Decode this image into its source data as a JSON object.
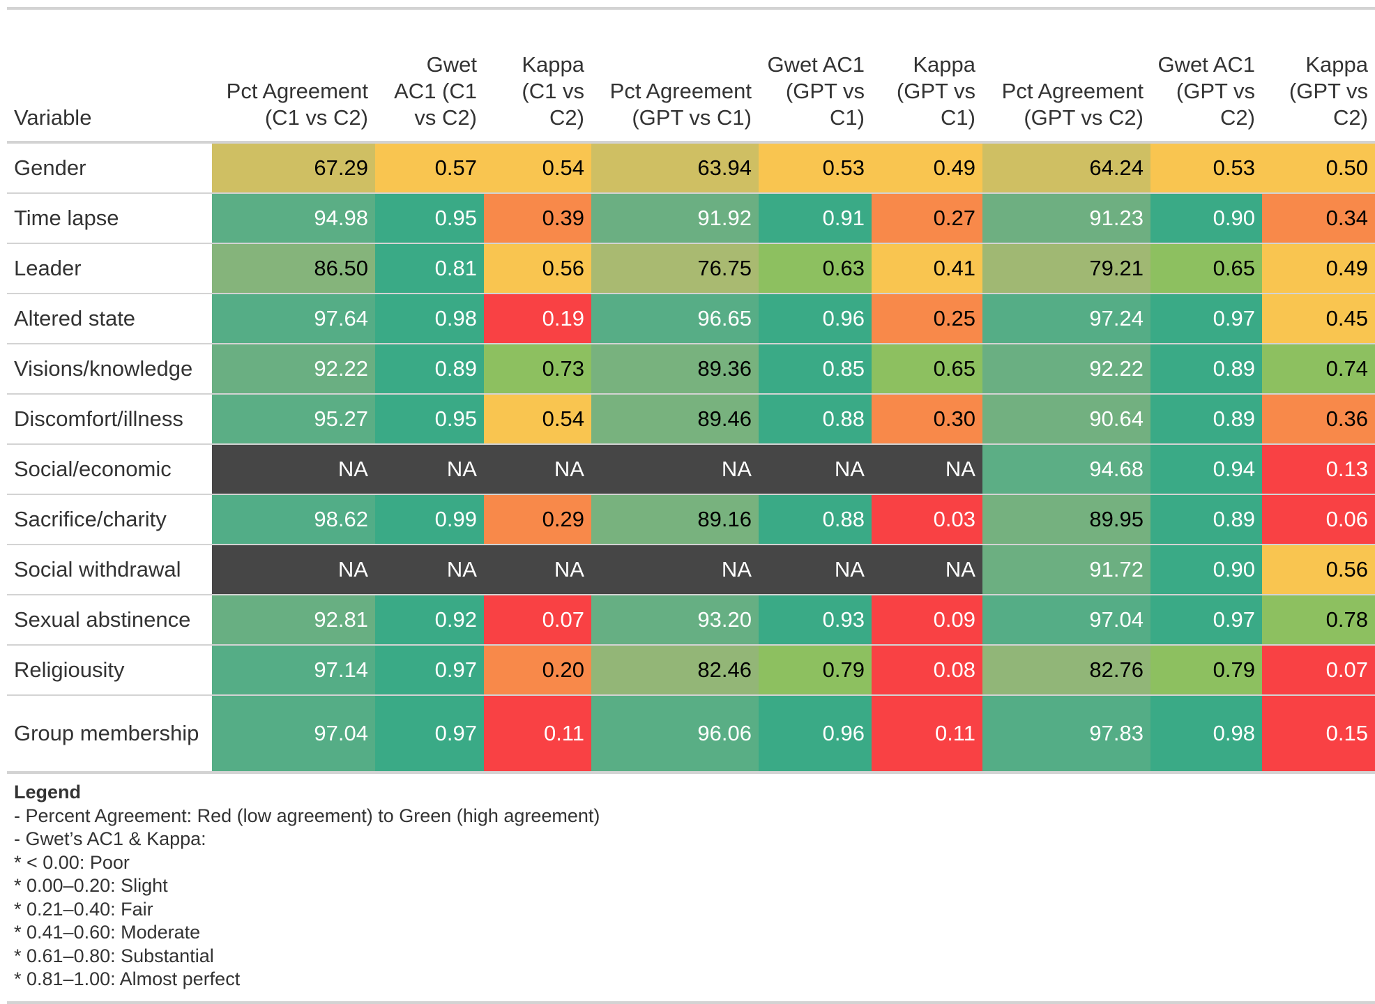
{
  "table": {
    "headers": [
      "Variable",
      "Pct Agreement (C1 vs C2)",
      "Gwet AC1 (C1 vs C2)",
      "Kappa (C1 vs C2)",
      "Pct Agreement (GPT vs C1)",
      "Gwet AC1 (GPT vs C1)",
      "Kappa (GPT vs C1)",
      "Pct Agreement (GPT vs C2)",
      "Gwet AC1 (GPT vs C2)",
      "Kappa (GPT vs C2)"
    ],
    "rows": [
      {
        "variable": "Gender",
        "values": [
          "67.29",
          "0.57",
          "0.54",
          "63.94",
          "0.53",
          "0.49",
          "64.24",
          "0.53",
          "0.50"
        ],
        "bg": [
          "#CFBF63",
          "#F9C550",
          "#F9C550",
          "#CFBF63",
          "#F9C550",
          "#F9C550",
          "#CFBF63",
          "#F9C550",
          "#F9C550"
        ],
        "fg": [
          "#000000",
          "#000000",
          "#000000",
          "#000000",
          "#000000",
          "#000000",
          "#000000",
          "#000000",
          "#000000"
        ]
      },
      {
        "variable": "Time lapse",
        "values": [
          "94.98",
          "0.95",
          "0.39",
          "91.92",
          "0.91",
          "0.27",
          "91.23",
          "0.90",
          "0.34"
        ],
        "bg": [
          "#5BAE85",
          "#3AAA86",
          "#F8894A",
          "#6BAF82",
          "#3AAA86",
          "#F8894A",
          "#6EAF81",
          "#3AAA86",
          "#F8894A"
        ],
        "fg": [
          "#FFFFFF",
          "#FFFFFF",
          "#000000",
          "#FFFFFF",
          "#FFFFFF",
          "#000000",
          "#FFFFFF",
          "#FFFFFF",
          "#000000"
        ]
      },
      {
        "variable": "Leader",
        "values": [
          "86.50",
          "0.81",
          "0.56",
          "76.75",
          "0.63",
          "0.41",
          "79.21",
          "0.65",
          "0.49"
        ],
        "bg": [
          "#85B47B",
          "#3AAA86",
          "#F9C550",
          "#A9BA71",
          "#8DC060",
          "#F9C550",
          "#A0B873",
          "#8DC060",
          "#F9C550"
        ],
        "fg": [
          "#000000",
          "#FFFFFF",
          "#000000",
          "#000000",
          "#000000",
          "#000000",
          "#000000",
          "#000000",
          "#000000"
        ]
      },
      {
        "variable": "Altered state",
        "values": [
          "97.64",
          "0.98",
          "0.19",
          "96.65",
          "0.96",
          "0.25",
          "97.24",
          "0.97",
          "0.45"
        ],
        "bg": [
          "#55AD86",
          "#3AAA86",
          "#F94144",
          "#57AD86",
          "#3AAA86",
          "#F8894A",
          "#55AD86",
          "#3AAA86",
          "#F9C550"
        ],
        "fg": [
          "#FFFFFF",
          "#FFFFFF",
          "#FFFFFF",
          "#FFFFFF",
          "#FFFFFF",
          "#000000",
          "#FFFFFF",
          "#FFFFFF",
          "#000000"
        ]
      },
      {
        "variable": "Visions/knowledge",
        "values": [
          "92.22",
          "0.89",
          "0.73",
          "89.36",
          "0.85",
          "0.65",
          "92.22",
          "0.89",
          "0.74"
        ],
        "bg": [
          "#6AAF82",
          "#3AAA86",
          "#8DC060",
          "#78B27E",
          "#3AAA86",
          "#8DC060",
          "#6AAF82",
          "#3AAA86",
          "#8DC060"
        ],
        "fg": [
          "#FFFFFF",
          "#FFFFFF",
          "#000000",
          "#000000",
          "#FFFFFF",
          "#000000",
          "#FFFFFF",
          "#FFFFFF",
          "#000000"
        ]
      },
      {
        "variable": "Discomfort/illness",
        "values": [
          "95.27",
          "0.95",
          "0.54",
          "89.46",
          "0.88",
          "0.30",
          "90.64",
          "0.89",
          "0.36"
        ],
        "bg": [
          "#5BAE85",
          "#3AAA86",
          "#F9C550",
          "#78B27E",
          "#3AAA86",
          "#F8894A",
          "#72B080",
          "#3AAA86",
          "#F8894A"
        ],
        "fg": [
          "#FFFFFF",
          "#FFFFFF",
          "#000000",
          "#000000",
          "#FFFFFF",
          "#000000",
          "#FFFFFF",
          "#FFFFFF",
          "#000000"
        ]
      },
      {
        "variable": "Social/economic",
        "values": [
          "NA",
          "NA",
          "NA",
          "NA",
          "NA",
          "NA",
          "94.68",
          "0.94",
          "0.13"
        ],
        "bg": [
          "#464646",
          "#464646",
          "#464646",
          "#464646",
          "#464646",
          "#464646",
          "#5CAE85",
          "#3AAA86",
          "#F94144"
        ],
        "fg": [
          "#FFFFFF",
          "#FFFFFF",
          "#FFFFFF",
          "#FFFFFF",
          "#FFFFFF",
          "#FFFFFF",
          "#FFFFFF",
          "#FFFFFF",
          "#FFFFFF"
        ]
      },
      {
        "variable": "Sacrifice/charity",
        "values": [
          "98.62",
          "0.99",
          "0.29",
          "89.16",
          "0.88",
          "0.03",
          "89.95",
          "0.89",
          "0.06"
        ],
        "bg": [
          "#52AD87",
          "#3AAA86",
          "#F8894A",
          "#78B27E",
          "#3AAA86",
          "#F94144",
          "#75B17F",
          "#3AAA86",
          "#F94144"
        ],
        "fg": [
          "#FFFFFF",
          "#FFFFFF",
          "#000000",
          "#000000",
          "#FFFFFF",
          "#FFFFFF",
          "#000000",
          "#FFFFFF",
          "#FFFFFF"
        ]
      },
      {
        "variable": "Social withdrawal",
        "values": [
          "NA",
          "NA",
          "NA",
          "NA",
          "NA",
          "NA",
          "91.72",
          "0.90",
          "0.56"
        ],
        "bg": [
          "#464646",
          "#464646",
          "#464646",
          "#464646",
          "#464646",
          "#464646",
          "#6CAF81",
          "#3AAA86",
          "#F9C550"
        ],
        "fg": [
          "#FFFFFF",
          "#FFFFFF",
          "#FFFFFF",
          "#FFFFFF",
          "#FFFFFF",
          "#FFFFFF",
          "#FFFFFF",
          "#FFFFFF",
          "#000000"
        ]
      },
      {
        "variable": "Sexual abstinence",
        "values": [
          "92.81",
          "0.92",
          "0.07",
          "93.20",
          "0.93",
          "0.09",
          "97.04",
          "0.97",
          "0.78"
        ],
        "bg": [
          "#68AF82",
          "#3AAA86",
          "#F94144",
          "#66AF83",
          "#3AAA86",
          "#F94144",
          "#55AD86",
          "#3AAA86",
          "#8DC060"
        ],
        "fg": [
          "#FFFFFF",
          "#FFFFFF",
          "#FFFFFF",
          "#FFFFFF",
          "#FFFFFF",
          "#FFFFFF",
          "#FFFFFF",
          "#FFFFFF",
          "#000000"
        ]
      },
      {
        "variable": "Religiousity",
        "values": [
          "97.14",
          "0.97",
          "0.20",
          "82.46",
          "0.79",
          "0.08",
          "82.76",
          "0.79",
          "0.07"
        ],
        "bg": [
          "#55AD86",
          "#3AAA86",
          "#F8894A",
          "#93B677",
          "#8DC060",
          "#F94144",
          "#91B678",
          "#8DC060",
          "#F94144"
        ],
        "fg": [
          "#FFFFFF",
          "#FFFFFF",
          "#000000",
          "#000000",
          "#000000",
          "#FFFFFF",
          "#000000",
          "#000000",
          "#FFFFFF"
        ]
      },
      {
        "variable": "Group membership",
        "values": [
          "97.04",
          "0.97",
          "0.11",
          "96.06",
          "0.96",
          "0.11",
          "97.83",
          "0.98",
          "0.15"
        ],
        "bg": [
          "#55AD86",
          "#3AAA86",
          "#F94144",
          "#59AE85",
          "#3AAA86",
          "#F94144",
          "#54AD86",
          "#3AAA86",
          "#F94144"
        ],
        "fg": [
          "#FFFFFF",
          "#FFFFFF",
          "#FFFFFF",
          "#FFFFFF",
          "#FFFFFF",
          "#FFFFFF",
          "#FFFFFF",
          "#FFFFFF",
          "#FFFFFF"
        ]
      }
    ]
  },
  "legend": {
    "title": "Legend",
    "lines": [
      "- Percent Agreement: Red (low agreement) to Green (high agreement)",
      "- Gwet’s AC1 & Kappa:",
      "* < 0.00: Poor",
      "* 0.00–0.20: Slight",
      "* 0.21–0.40: Fair",
      "* 0.41–0.60: Moderate",
      "* 0.61–0.80: Substantial",
      "* 0.81–1.00: Almost perfect"
    ]
  }
}
